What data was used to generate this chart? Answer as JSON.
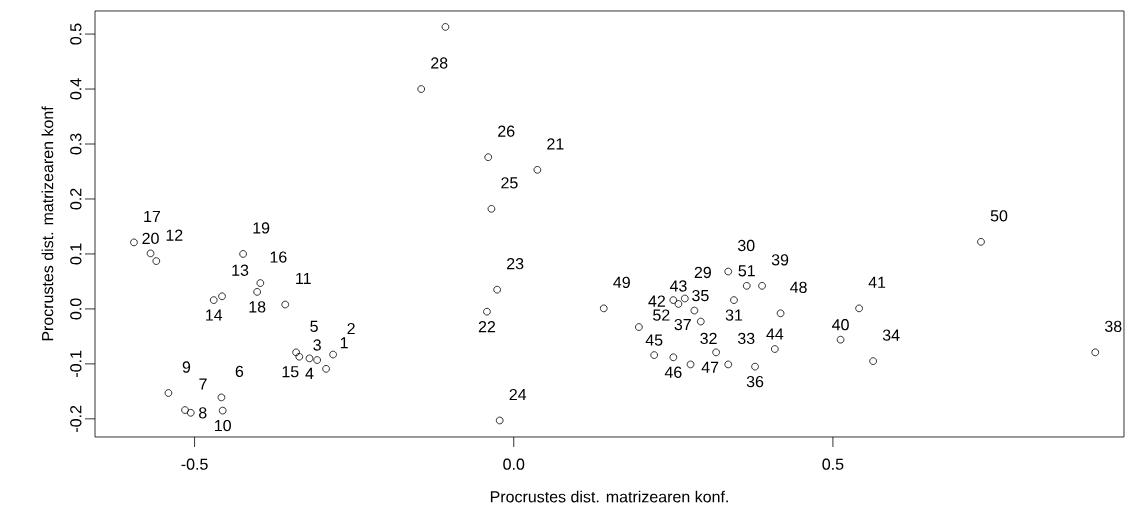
{
  "chart_data": {
    "type": "scatter",
    "xlabel": "Procrustes dist. matrizearen konf.",
    "ylabel": "Procrustes dist. matrizearen konf",
    "x": [
      -0.294,
      -0.283,
      -0.308,
      -0.32,
      -0.341,
      -0.458,
      -0.515,
      -0.506,
      -0.541,
      -0.456,
      -0.358,
      -0.56,
      -0.457,
      -0.47,
      -0.336,
      -0.397,
      -0.595,
      -0.402,
      -0.424,
      -0.569,
      0.037,
      -0.042,
      -0.026,
      -0.022,
      -0.035,
      -0.04,
      -0.107,
      -0.145,
      0.268,
      0.336,
      0.345,
      0.277,
      0.336,
      0.563,
      0.283,
      0.378,
      0.293,
      0.911,
      0.389,
      0.512,
      0.541,
      0.196,
      0.258,
      0.409,
      0.22,
      0.25,
      0.317,
      0.418,
      0.141,
      0.732,
      0.365,
      0.25
    ],
    "values": [
      -0.109,
      -0.083,
      -0.093,
      -0.09,
      -0.079,
      -0.161,
      -0.184,
      -0.189,
      -0.153,
      -0.185,
      0.008,
      0.087,
      0.023,
      0.016,
      -0.087,
      0.047,
      0.121,
      0.031,
      0.1,
      0.101,
      0.253,
      -0.005,
      0.035,
      -0.203,
      0.182,
      0.276,
      0.513,
      0.4,
      0.019,
      0.068,
      0.016,
      -0.101,
      -0.101,
      -0.095,
      -0.003,
      -0.105,
      -0.023,
      -0.079,
      0.042,
      -0.056,
      0.001,
      -0.033,
      0.009,
      -0.073,
      -0.084,
      -0.088,
      -0.079,
      -0.008,
      0.001,
      0.122,
      0.042,
      0.016
    ],
    "annotations": [
      {
        "text": "1",
        "x": -0.294,
        "y": -0.109
      },
      {
        "text": "2",
        "x": -0.283,
        "y": -0.083
      },
      {
        "text": "3",
        "x": -0.308,
        "y": -0.093
      },
      {
        "text": "4",
        "x": -0.32,
        "y": -0.09
      },
      {
        "text": "5",
        "x": -0.341,
        "y": -0.079
      },
      {
        "text": "6",
        "x": -0.458,
        "y": -0.161
      },
      {
        "text": "7",
        "x": -0.515,
        "y": -0.184
      },
      {
        "text": "8",
        "x": -0.506,
        "y": -0.189
      },
      {
        "text": "9",
        "x": -0.541,
        "y": -0.153
      },
      {
        "text": "10",
        "x": -0.456,
        "y": -0.185
      },
      {
        "text": "11",
        "x": -0.358,
        "y": 0.008
      },
      {
        "text": "12",
        "x": -0.56,
        "y": 0.087
      },
      {
        "text": "13",
        "x": -0.457,
        "y": 0.023
      },
      {
        "text": "14",
        "x": -0.47,
        "y": 0.016
      },
      {
        "text": "15",
        "x": -0.336,
        "y": -0.087
      },
      {
        "text": "16",
        "x": -0.397,
        "y": 0.047
      },
      {
        "text": "17",
        "x": -0.595,
        "y": 0.121
      },
      {
        "text": "18",
        "x": -0.402,
        "y": 0.031
      },
      {
        "text": "19",
        "x": -0.424,
        "y": 0.1
      },
      {
        "text": "20",
        "x": -0.569,
        "y": 0.101
      },
      {
        "text": "21",
        "x": 0.037,
        "y": 0.253
      },
      {
        "text": "22",
        "x": -0.042,
        "y": -0.005
      },
      {
        "text": "23",
        "x": -0.026,
        "y": 0.035
      },
      {
        "text": "24",
        "x": -0.022,
        "y": -0.203
      },
      {
        "text": "25",
        "x": -0.035,
        "y": 0.182
      },
      {
        "text": "26",
        "x": -0.04,
        "y": 0.276
      },
      {
        "text": "28",
        "x": -0.145,
        "y": 0.4
      },
      {
        "text": "29",
        "x": 0.268,
        "y": 0.019
      },
      {
        "text": "30",
        "x": 0.336,
        "y": 0.068
      },
      {
        "text": "31",
        "x": 0.345,
        "y": 0.016
      },
      {
        "text": "32",
        "x": 0.277,
        "y": -0.101
      },
      {
        "text": "33",
        "x": 0.336,
        "y": -0.101
      },
      {
        "text": "34",
        "x": 0.563,
        "y": -0.095
      },
      {
        "text": "35",
        "x": 0.283,
        "y": -0.003
      },
      {
        "text": "36",
        "x": 0.378,
        "y": -0.105
      },
      {
        "text": "37",
        "x": 0.293,
        "y": -0.023
      },
      {
        "text": "38",
        "x": 0.911,
        "y": -0.079
      },
      {
        "text": "39",
        "x": 0.389,
        "y": 0.042
      },
      {
        "text": "40",
        "x": 0.512,
        "y": -0.056
      },
      {
        "text": "41",
        "x": 0.541,
        "y": 0.001
      },
      {
        "text": "42",
        "x": 0.196,
        "y": -0.033
      },
      {
        "text": "43",
        "x": 0.258,
        "y": 0.009
      },
      {
        "text": "44",
        "x": 0.409,
        "y": -0.073
      },
      {
        "text": "45",
        "x": 0.22,
        "y": -0.084
      },
      {
        "text": "46",
        "x": 0.25,
        "y": -0.088
      },
      {
        "text": "47",
        "x": 0.317,
        "y": -0.079
      },
      {
        "text": "48",
        "x": 0.418,
        "y": -0.008
      },
      {
        "text": "49",
        "x": 0.141,
        "y": 0.001
      },
      {
        "text": "50",
        "x": 0.732,
        "y": 0.122
      },
      {
        "text": "51",
        "x": 0.365,
        "y": 0.042
      },
      {
        "text": "52",
        "x": 0.25,
        "y": 0.016
      }
    ],
    "color": "#000000",
    "marker": "circle",
    "xlim": [
      -0.656,
      0.956
    ],
    "ylim": [
      -0.233,
      0.542
    ],
    "xticks": [
      -0.5,
      {
        "value": 0,
        "label": "0.0"
      },
      0.5
    ],
    "yticks": [
      -0.2,
      -0.1,
      {
        "value": 0,
        "label": "0.0"
      },
      0.1,
      0.2,
      0.3,
      0.4,
      0.5
    ]
  }
}
